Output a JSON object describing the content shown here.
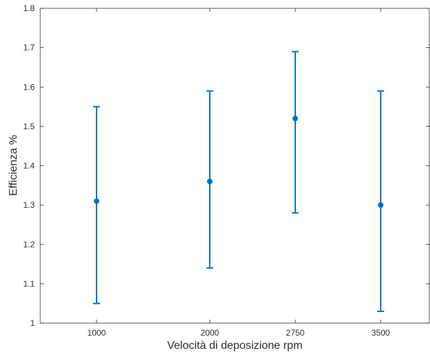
{
  "chart_data": {
    "type": "errorbar",
    "title": "",
    "xlabel": "Velocità di deposizione rpm",
    "ylabel": "Efficienza %",
    "categories": [
      "1000",
      "2000",
      "2750",
      "3500"
    ],
    "ylim": [
      1,
      1.8
    ],
    "yticks": [
      "1",
      "1.1",
      "1.2",
      "1.3",
      "1.4",
      "1.5",
      "1.6",
      "1.7",
      "1.8"
    ],
    "grid": false,
    "color": "#0072BD",
    "series": [
      {
        "values": [
          1.31,
          1.36,
          1.52,
          1.3
        ],
        "lower": [
          1.05,
          1.14,
          1.28,
          1.03
        ],
        "upper": [
          1.55,
          1.59,
          1.69,
          1.59
        ]
      }
    ]
  }
}
